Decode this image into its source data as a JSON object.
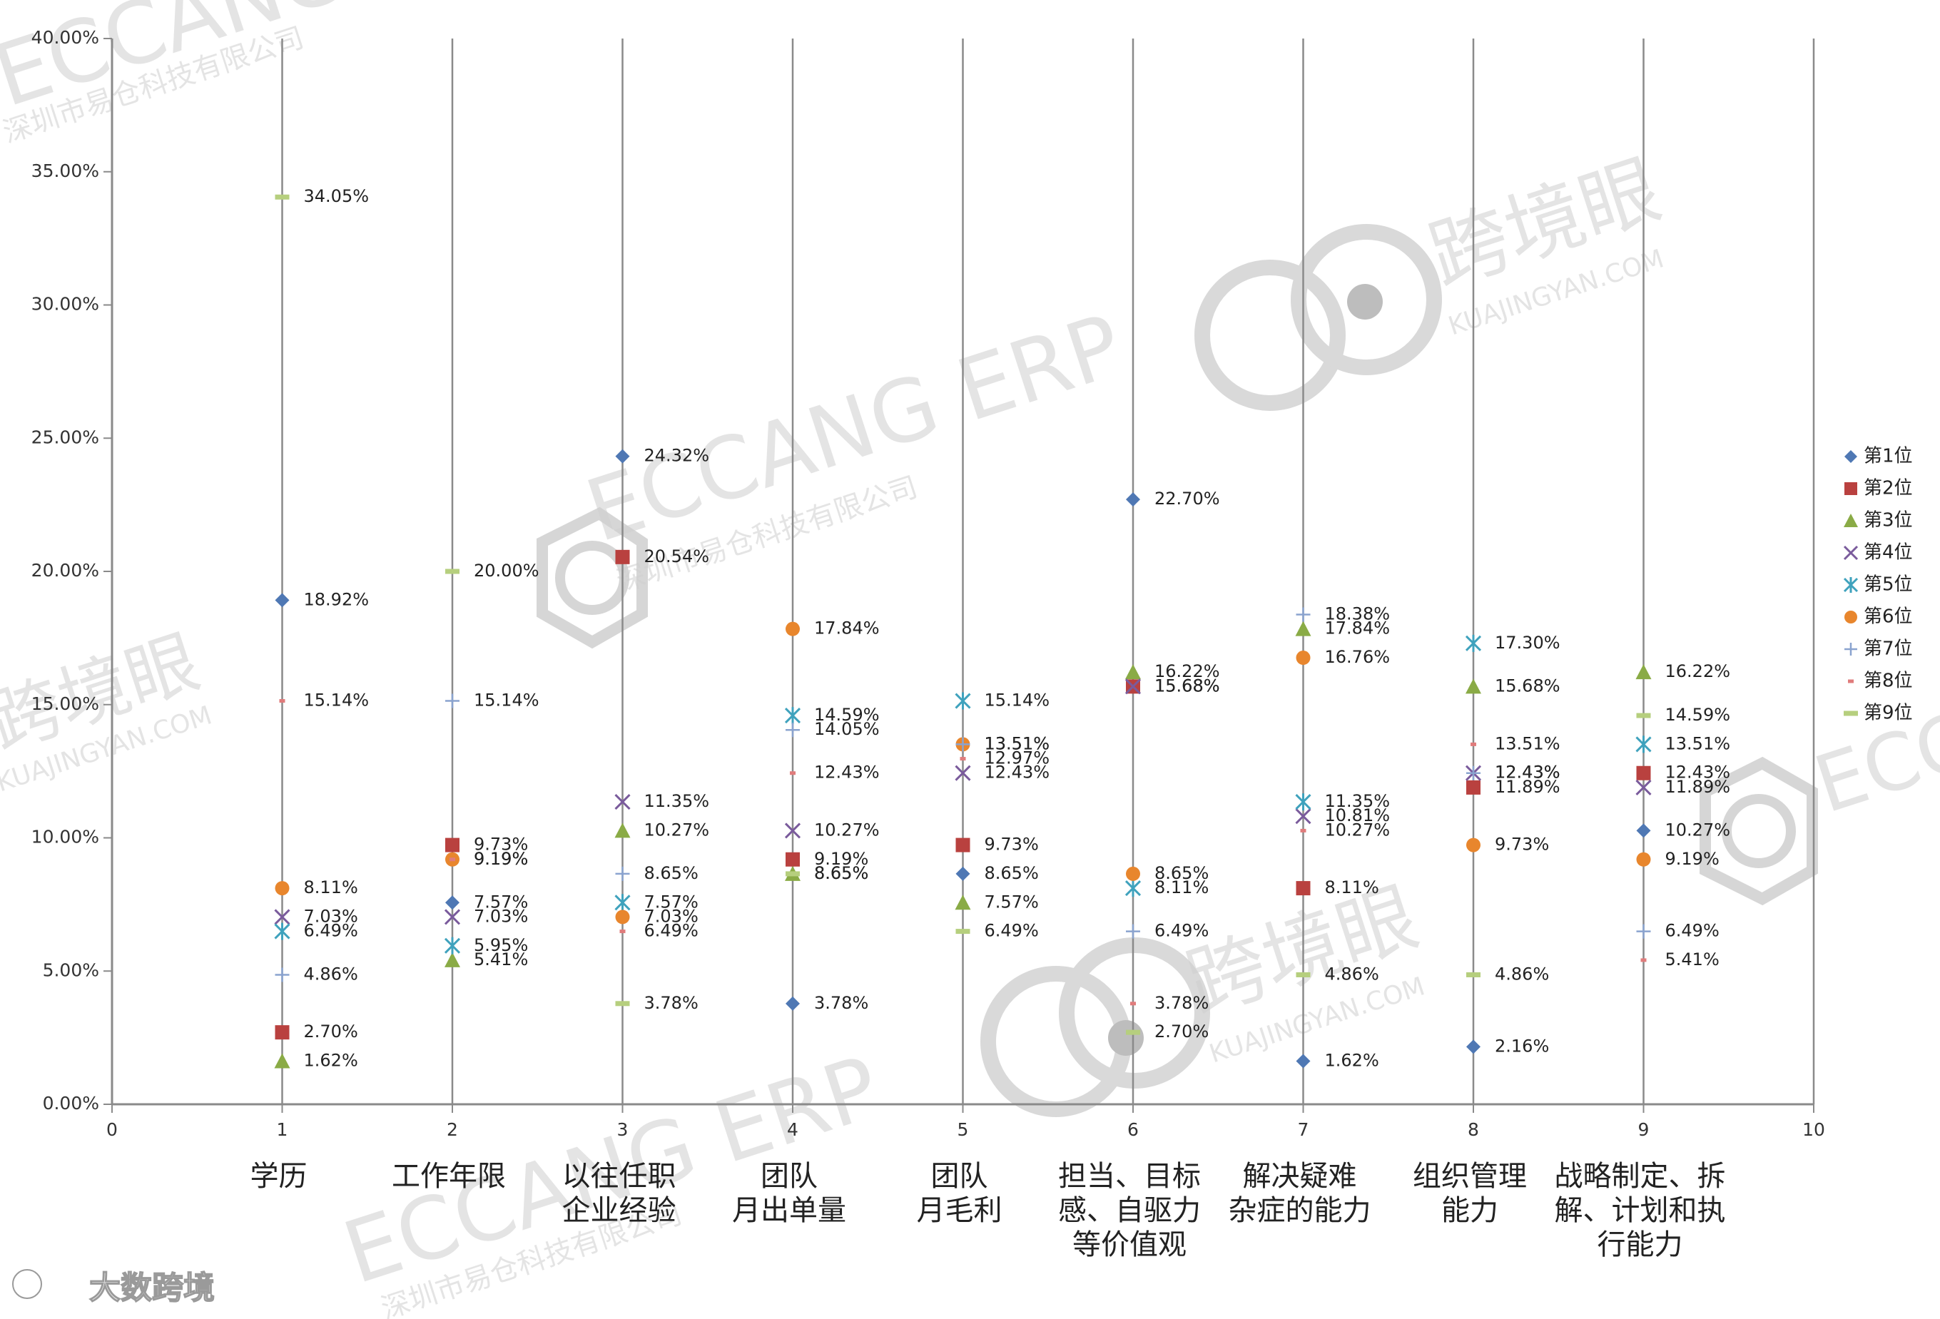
{
  "chart_data": {
    "type": "scatter",
    "xlim": [
      0,
      10
    ],
    "ylim": [
      0,
      0.4
    ],
    "x_ticks": [
      "0",
      "1",
      "2",
      "3",
      "4",
      "5",
      "6",
      "7",
      "8",
      "9",
      "10"
    ],
    "y_ticks": [
      "0.00%",
      "5.00%",
      "10.00%",
      "15.00%",
      "20.00%",
      "25.00%",
      "30.00%",
      "35.00%",
      "40.00%"
    ],
    "grid": "vertical lines at x = 1..10",
    "legend_position": "right",
    "categories": [
      {
        "x": 1,
        "label": [
          "学历"
        ]
      },
      {
        "x": 2,
        "label": [
          "工作年限"
        ]
      },
      {
        "x": 3,
        "label": [
          "以往任职",
          "企业经验"
        ]
      },
      {
        "x": 4,
        "label": [
          "团队",
          "月出单量"
        ]
      },
      {
        "x": 5,
        "label": [
          "团队",
          "月毛利"
        ]
      },
      {
        "x": 6,
        "label": [
          "担当、目标",
          "感、自驱力",
          "等价值观"
        ]
      },
      {
        "x": 7,
        "label": [
          "解决疑难",
          "杂症的能力"
        ]
      },
      {
        "x": 8,
        "label": [
          "组织管理",
          "能力"
        ]
      },
      {
        "x": 9,
        "label": [
          "战略制定、拆",
          "解、计划和执",
          "行能力"
        ]
      }
    ],
    "series": [
      {
        "name": "第1位",
        "color": "#4f78b4",
        "marker": "diamond",
        "values": [
          18.92,
          7.57,
          24.32,
          3.78,
          8.65,
          22.7,
          1.62,
          2.16,
          10.27
        ]
      },
      {
        "name": "第2位",
        "color": "#b9413f",
        "marker": "square",
        "values": [
          2.7,
          9.73,
          20.54,
          9.19,
          9.73,
          15.68,
          8.11,
          11.89,
          12.43
        ]
      },
      {
        "name": "第3位",
        "color": "#8aab46",
        "marker": "triangle",
        "values": [
          1.62,
          5.41,
          10.27,
          8.65,
          7.57,
          16.22,
          17.84,
          15.68,
          16.22
        ]
      },
      {
        "name": "第4位",
        "color": "#7a5b9c",
        "marker": "x",
        "values": [
          7.03,
          7.03,
          11.35,
          10.27,
          12.43,
          15.68,
          10.81,
          12.43,
          11.89
        ]
      },
      {
        "name": "第5位",
        "color": "#3fa2bd",
        "marker": "star",
        "values": [
          6.49,
          5.95,
          7.57,
          14.59,
          15.14,
          8.11,
          11.35,
          17.3,
          13.51
        ]
      },
      {
        "name": "第6位",
        "color": "#e8862d",
        "marker": "circle",
        "values": [
          8.11,
          9.19,
          7.03,
          17.84,
          13.51,
          8.65,
          16.76,
          9.73,
          9.19
        ]
      },
      {
        "name": "第7位",
        "color": "#8aa3cf",
        "marker": "plus",
        "values": [
          4.86,
          15.14,
          8.65,
          14.05,
          13.51,
          6.49,
          18.38,
          12.43,
          6.49
        ]
      },
      {
        "name": "第8位",
        "color": "#e07c7c",
        "marker": "dash",
        "values": [
          15.14,
          9.19,
          6.49,
          12.43,
          12.97,
          3.78,
          10.27,
          13.51,
          5.41
        ]
      },
      {
        "name": "第9位",
        "color": "#b6cf7e",
        "marker": "dash-wide",
        "values": [
          34.05,
          20.0,
          3.78,
          8.65,
          6.49,
          2.7,
          4.86,
          4.86,
          14.59
        ]
      }
    ]
  },
  "watermarks": {
    "brand_en": "ECCANG ERP",
    "brand_cn": "深圳市易仓科技有限公司",
    "site_cn": "跨境眼",
    "site_en": "KUAJINGYAN.COM",
    "corner_text": "大数跨境",
    "corner_en": "ECCANG"
  }
}
